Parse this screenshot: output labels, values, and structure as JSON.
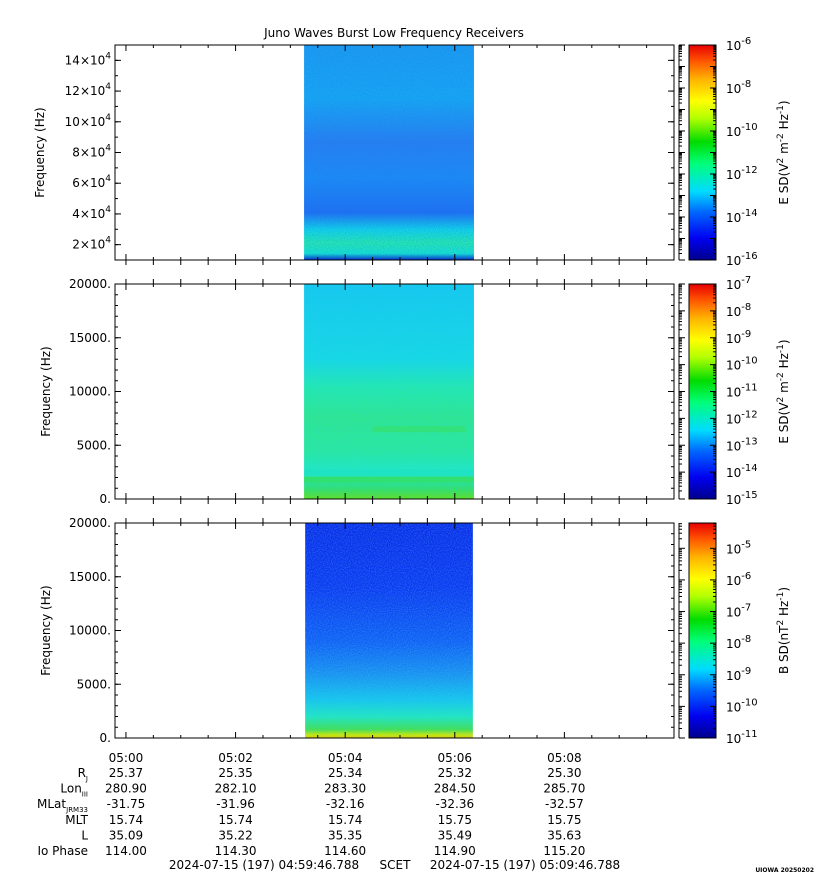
{
  "title": "Juno Waves Burst Low Frequency Receivers",
  "chart_data": [
    {
      "type": "heatmap",
      "ylabel": "Frequency (Hz)",
      "ylim": [
        10000,
        150000
      ],
      "yticks": [
        {
          "value": 20000,
          "mant": "2",
          "exp": "4"
        },
        {
          "value": 40000,
          "mant": "4",
          "exp": "4"
        },
        {
          "value": 60000,
          "mant": "6",
          "exp": "4"
        },
        {
          "value": 80000,
          "mant": "8",
          "exp": "4"
        },
        {
          "value": 100000,
          "mant": "10",
          "exp": "4"
        },
        {
          "value": 120000,
          "mant": "12",
          "exp": "4"
        },
        {
          "value": 140000,
          "mant": "14",
          "exp": "4"
        }
      ],
      "data_start_minute": 3.25,
      "data_end_minute": 6.35,
      "color_scale": "log",
      "colorbar": {
        "label_base": "E SD(V",
        "label_sup1": "2",
        "label_mid": " m",
        "label_sup2": "-2",
        "label_mid2": " Hz",
        "label_sup3": "-1",
        "label_end": ")",
        "range_exp": [
          -16,
          -6
        ],
        "labels": [
          "-6",
          "-8",
          "-10",
          "-12",
          "-14",
          "-16"
        ]
      }
    },
    {
      "type": "heatmap",
      "ylabel": "Frequency (Hz)",
      "ylim": [
        0,
        20000
      ],
      "yticks": [
        {
          "value": 0,
          "label": "0."
        },
        {
          "value": 5000,
          "label": "5000."
        },
        {
          "value": 10000,
          "label": "10000."
        },
        {
          "value": 15000,
          "label": "15000."
        },
        {
          "value": 20000,
          "label": "20000."
        }
      ],
      "data_start_minute": 3.25,
      "data_end_minute": 6.35,
      "color_scale": "log",
      "colorbar": {
        "label_base": "E SD(V",
        "label_sup1": "2",
        "label_mid": " m",
        "label_sup2": "-2",
        "label_mid2": " Hz",
        "label_sup3": "-1",
        "label_end": ")",
        "range_exp": [
          -15,
          -7
        ],
        "labels": [
          "-7",
          "-8",
          "-9",
          "-10",
          "-11",
          "-12",
          "-13",
          "-14",
          "-15"
        ]
      }
    },
    {
      "type": "heatmap",
      "ylabel": "Frequency (Hz)",
      "ylim": [
        0,
        20000
      ],
      "yticks": [
        {
          "value": 0,
          "label": "0."
        },
        {
          "value": 5000,
          "label": "5000."
        },
        {
          "value": 10000,
          "label": "10000."
        },
        {
          "value": 15000,
          "label": "15000."
        },
        {
          "value": 20000,
          "label": "20000."
        }
      ],
      "data_start_minute": 3.27,
      "data_end_minute": 6.33,
      "color_scale": "log",
      "colorbar": {
        "label_base": "B SD(nT",
        "label_sup1": "2",
        "label_mid": " Hz",
        "label_sup2": "-1",
        "label_mid2": "",
        "label_sup3": "",
        "label_end": ")",
        "range_exp": [
          -11,
          -4.2
        ],
        "labels": [
          "-5",
          "-6",
          "-7",
          "-8",
          "-9",
          "-10",
          "-11"
        ]
      }
    }
  ],
  "xaxis": {
    "range_minutes": [
      -0.2,
      10.0
    ],
    "ticks": [
      {
        "minute": 0,
        "label": "05:00"
      },
      {
        "minute": 2,
        "label": "05:02"
      },
      {
        "minute": 4,
        "label": "05:04"
      },
      {
        "minute": 6,
        "label": "05:06"
      },
      {
        "minute": 8,
        "label": "05:08"
      }
    ]
  },
  "ephemeris": [
    {
      "label": "R",
      "sub": "J",
      "values": [
        "25.37",
        "25.35",
        "25.34",
        "25.32",
        "25.30"
      ]
    },
    {
      "label": "Lon",
      "sub": "III",
      "values": [
        "280.90",
        "282.10",
        "283.30",
        "284.50",
        "285.70"
      ]
    },
    {
      "label": "MLat",
      "sub": "JRM33",
      "values": [
        "-31.75",
        "-31.96",
        "-32.16",
        "-32.36",
        "-32.57"
      ]
    },
    {
      "label": "MLT",
      "sub": "",
      "values": [
        "15.74",
        "15.74",
        "15.74",
        "15.75",
        "15.75"
      ]
    },
    {
      "label": "L",
      "sub": "",
      "values": [
        "35.09",
        "35.22",
        "35.35",
        "35.49",
        "35.63"
      ]
    },
    {
      "label": "Io Phase",
      "sub": "",
      "values": [
        "114.00",
        "114.30",
        "114.60",
        "114.90",
        "115.20"
      ]
    }
  ],
  "footer": {
    "start": "2024-07-15 (197) 04:59:46.788",
    "scet": "SCET",
    "end": "2024-07-15 (197) 05:09:46.788"
  },
  "credit": "UIOWA 20250202",
  "colors": {
    "spec_blue": "#0a3cff",
    "spec_cyan": "#19c8f0",
    "spec_green": "#1ee650"
  }
}
